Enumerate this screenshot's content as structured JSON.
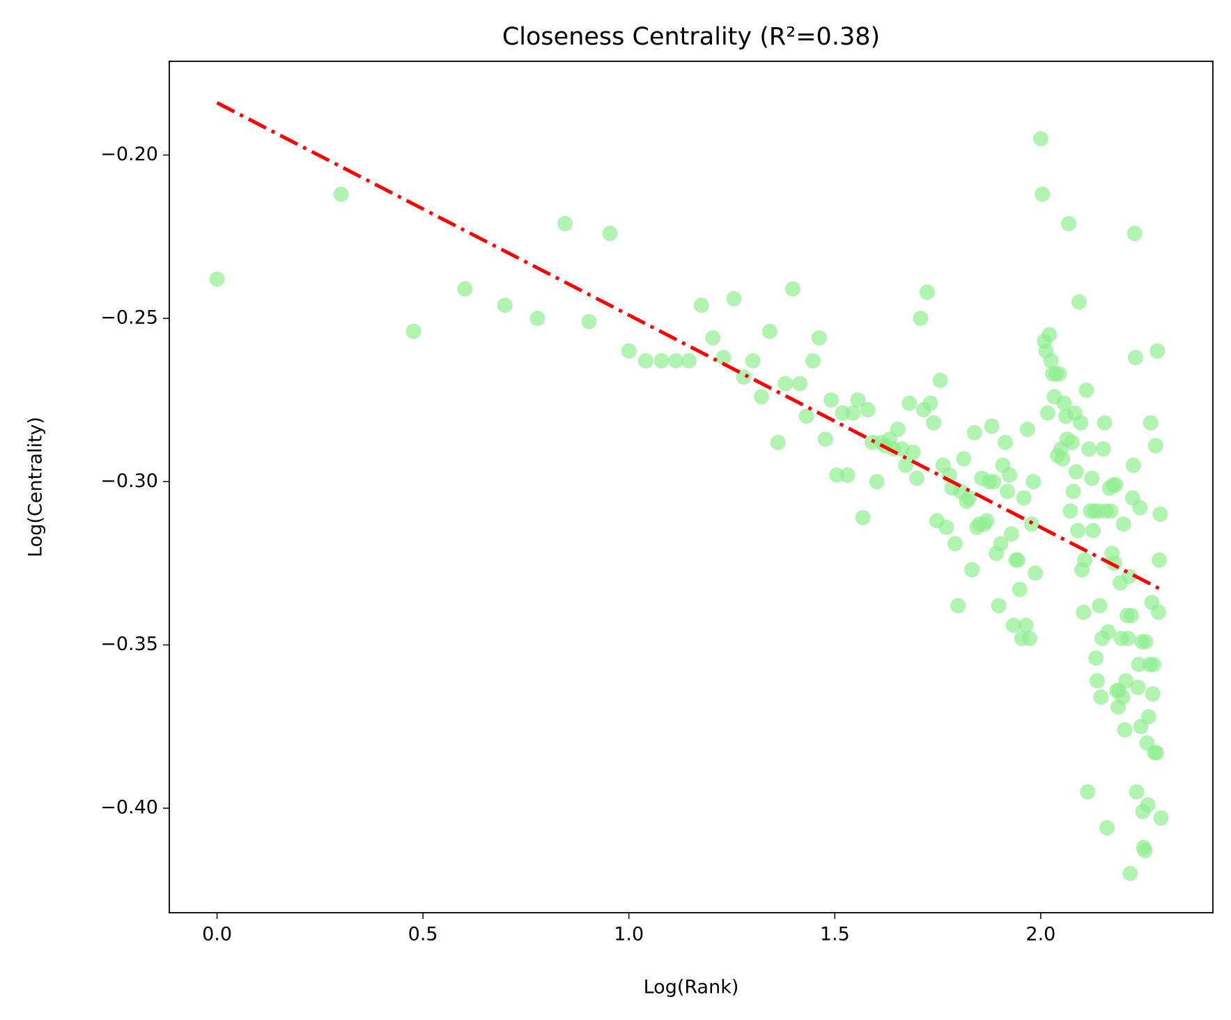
{
  "chart_data": {
    "type": "scatter",
    "title": "Closeness Centrality (R²=0.38)",
    "x_label": "Log(Rank)",
    "y_label": "Log(Centrality)",
    "xlim": [
      -0.116,
      2.418
    ],
    "ylim": [
      -0.432,
      -0.1713
    ],
    "xticks": [
      {
        "value": 0,
        "label": "0.0"
      },
      {
        "value": 0.5,
        "label": "0.5"
      },
      {
        "value": 1,
        "label": "1.0"
      },
      {
        "value": 1.5,
        "label": "1.5"
      },
      {
        "value": 2,
        "label": "2.0"
      }
    ],
    "yticks": [
      {
        "value": -0.4,
        "label": "−0.40"
      },
      {
        "value": -0.35,
        "label": "−0.35"
      },
      {
        "value": -0.3,
        "label": "−0.30"
      },
      {
        "value": -0.25,
        "label": "−0.25"
      },
      {
        "value": -0.2,
        "label": "−0.20"
      }
    ],
    "series": [
      {
        "type": "scatter",
        "color": "#90ee90",
        "alpha": 0.7,
        "x": [
          0,
          0.301,
          0.477,
          0.602,
          0.699,
          0.778,
          0.845,
          0.903,
          0.954,
          1.0,
          1.041,
          1.079,
          1.114,
          1.146,
          1.176,
          1.204,
          1.23,
          1.255,
          1.279,
          1.301,
          1.322,
          1.342,
          1.362,
          1.38,
          1.398,
          1.415,
          1.431,
          1.447,
          1.462,
          1.477,
          1.491,
          1.505,
          1.519,
          1.531,
          1.544,
          1.556,
          1.568,
          1.58,
          1.591,
          1.602,
          1.613,
          1.623,
          1.633,
          1.643,
          1.653,
          1.663,
          1.672,
          1.681,
          1.69,
          1.699,
          1.708,
          1.716,
          1.724,
          1.732,
          1.74,
          1.748,
          1.756,
          1.763,
          1.771,
          1.778,
          1.785,
          1.792,
          1.799,
          1.806,
          1.813,
          1.82,
          1.826,
          1.833,
          1.839,
          1.845,
          1.851,
          1.857,
          1.863,
          1.869,
          1.875,
          1.881,
          1.886,
          1.892,
          1.898,
          1.903,
          1.908,
          1.914,
          1.919,
          1.924,
          1.929,
          1.934,
          1.94,
          1.944,
          1.949,
          1.954,
          1.959,
          1.964,
          1.968,
          1.973,
          1.978,
          1.982,
          1.987,
          2.0,
          2.004,
          2.009,
          2.013,
          2.017,
          2.021,
          2.025,
          2.029,
          2.033,
          2.037,
          2.041,
          2.045,
          2.049,
          2.053,
          2.057,
          2.061,
          2.064,
          2.068,
          2.072,
          2.076,
          2.079,
          2.083,
          2.086,
          2.09,
          2.093,
          2.097,
          2.1,
          2.104,
          2.107,
          2.111,
          2.114,
          2.117,
          2.121,
          2.124,
          2.127,
          2.13,
          2.134,
          2.137,
          2.14,
          2.143,
          2.146,
          2.149,
          2.152,
          2.155,
          2.158,
          2.161,
          2.164,
          2.167,
          2.17,
          2.173,
          2.176,
          2.179,
          2.182,
          2.185,
          2.188,
          2.19,
          2.193,
          2.196,
          2.199,
          2.201,
          2.204,
          2.207,
          2.21,
          2.212,
          2.215,
          2.217,
          2.22,
          2.223,
          2.225,
          2.228,
          2.23,
          2.233,
          2.236,
          2.238,
          2.241,
          2.243,
          2.246,
          2.248,
          2.25,
          2.253,
          2.255,
          2.258,
          2.26,
          2.262,
          2.265,
          2.267,
          2.27,
          2.272,
          2.274,
          2.276,
          2.279,
          2.281,
          2.283,
          2.286,
          2.288,
          2.29,
          2.292
        ],
        "values": [
          -0.238,
          -0.212,
          -0.254,
          -0.241,
          -0.246,
          -0.25,
          -0.221,
          -0.251,
          -0.224,
          -0.26,
          -0.263,
          -0.263,
          -0.263,
          -0.263,
          -0.246,
          -0.256,
          -0.262,
          -0.244,
          -0.268,
          -0.263,
          -0.274,
          -0.254,
          -0.288,
          -0.27,
          -0.241,
          -0.27,
          -0.28,
          -0.263,
          -0.256,
          -0.287,
          -0.275,
          -0.298,
          -0.279,
          -0.298,
          -0.279,
          -0.275,
          -0.311,
          -0.278,
          -0.288,
          -0.3,
          -0.288,
          -0.289,
          -0.287,
          -0.29,
          -0.284,
          -0.29,
          -0.295,
          -0.276,
          -0.291,
          -0.299,
          -0.25,
          -0.278,
          -0.242,
          -0.276,
          -0.282,
          -0.312,
          -0.269,
          -0.295,
          -0.314,
          -0.298,
          -0.302,
          -0.319,
          -0.338,
          -0.303,
          -0.293,
          -0.306,
          -0.305,
          -0.327,
          -0.285,
          -0.314,
          -0.313,
          -0.299,
          -0.313,
          -0.312,
          -0.3,
          -0.283,
          -0.3,
          -0.322,
          -0.338,
          -0.319,
          -0.295,
          -0.288,
          -0.303,
          -0.298,
          -0.316,
          -0.344,
          -0.324,
          -0.324,
          -0.333,
          -0.348,
          -0.305,
          -0.344,
          -0.284,
          -0.348,
          -0.313,
          -0.3,
          -0.328,
          -0.195,
          -0.212,
          -0.257,
          -0.26,
          -0.279,
          -0.255,
          -0.263,
          -0.267,
          -0.274,
          -0.267,
          -0.292,
          -0.267,
          -0.29,
          -0.293,
          -0.276,
          -0.28,
          -0.287,
          -0.221,
          -0.309,
          -0.288,
          -0.303,
          -0.279,
          -0.297,
          -0.315,
          -0.245,
          -0.282,
          -0.327,
          -0.34,
          -0.324,
          -0.272,
          -0.395,
          -0.29,
          -0.309,
          -0.299,
          -0.315,
          -0.309,
          -0.354,
          -0.361,
          -0.309,
          -0.338,
          -0.366,
          -0.348,
          -0.29,
          -0.282,
          -0.309,
          -0.406,
          -0.346,
          -0.302,
          -0.309,
          -0.322,
          -0.301,
          -0.325,
          -0.301,
          -0.364,
          -0.369,
          -0.364,
          -0.331,
          -0.348,
          -0.366,
          -0.313,
          -0.376,
          -0.361,
          -0.341,
          -0.348,
          -0.329,
          -0.42,
          -0.341,
          -0.305,
          -0.295,
          -0.224,
          -0.262,
          -0.395,
          -0.363,
          -0.356,
          -0.308,
          -0.375,
          -0.349,
          -0.401,
          -0.412,
          -0.413,
          -0.349,
          -0.38,
          -0.399,
          -0.372,
          -0.356,
          -0.282,
          -0.337,
          -0.365,
          -0.356,
          -0.383,
          -0.289,
          -0.383,
          -0.26,
          -0.34,
          -0.324,
          -0.31,
          -0.403
        ]
      },
      {
        "type": "line",
        "color": "#ff0000",
        "x": [
          0,
          2.292
        ],
        "values": [
          -0.184,
          -0.333
        ]
      }
    ]
  }
}
